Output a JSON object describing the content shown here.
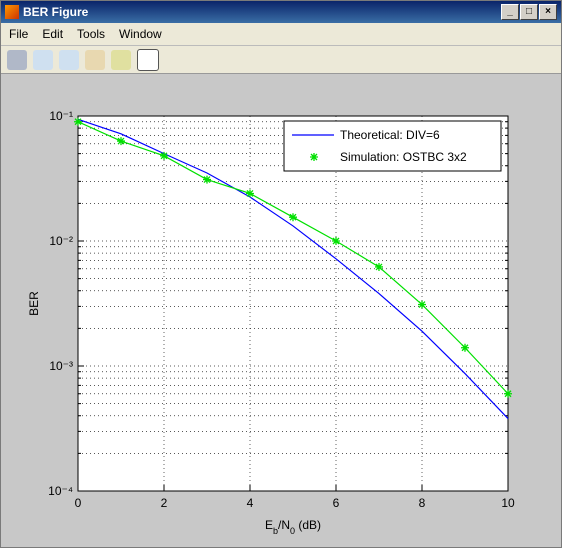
{
  "window": {
    "title": "BER Figure",
    "menu": [
      "File",
      "Edit",
      "Tools",
      "Window"
    ]
  },
  "chart_data": {
    "type": "line",
    "xlabel": "Eb/N0 (dB)",
    "ylabel": "BER",
    "x": [
      0,
      1,
      2,
      3,
      4,
      5,
      6,
      7,
      8,
      9,
      10
    ],
    "series": [
      {
        "name": "Theoretical: DIV=6",
        "color": "#0000ff",
        "marker": "none",
        "values": [
          0.094,
          0.072,
          0.05,
          0.035,
          0.0225,
          0.0132,
          0.0072,
          0.0038,
          0.0019,
          0.00087,
          0.00038
        ]
      },
      {
        "name": "Simulation: OSTBC 3x2",
        "color": "#00e000",
        "marker": "star",
        "values": [
          0.09,
          0.063,
          0.048,
          0.031,
          0.024,
          0.0155,
          0.01,
          0.0062,
          0.0031,
          0.0014,
          0.0006
        ]
      }
    ],
    "xlim": [
      0,
      10
    ],
    "xticks": [
      0,
      2,
      4,
      6,
      8,
      10
    ],
    "ylim": [
      0.0001,
      0.1
    ],
    "yticks": [
      {
        "value": 0.0001,
        "label": "10⁻⁴"
      },
      {
        "value": 0.001,
        "label": "10⁻³"
      },
      {
        "value": 0.01,
        "label": "10⁻²"
      },
      {
        "value": 0.1,
        "label": "10⁻¹"
      }
    ],
    "yscale": "log",
    "grid": true,
    "minor_grid": true,
    "legend": "upper right"
  }
}
